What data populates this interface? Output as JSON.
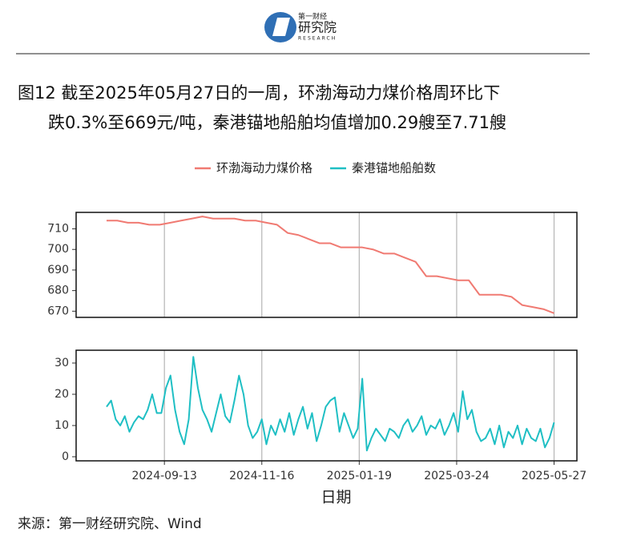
{
  "logo": {
    "name": "第一财经",
    "text": "研究院",
    "sub": "RESEARCH"
  },
  "title": [
    "图12  截至2025年05月27日的一周，环渤海动力煤价格周环比下",
    "跌0.3%至669元/吨，秦港锚地船舶均值增加0.29艘至7.71艘"
  ],
  "source": "来源：第一财经研究院、Wind",
  "chart_data": [
    {
      "type": "line",
      "x": [
        "2024-08-06",
        "2024-08-13",
        "2024-08-20",
        "2024-08-27",
        "2024-09-03",
        "2024-09-10",
        "2024-09-17",
        "2024-09-24",
        "2024-10-01",
        "2024-10-08",
        "2024-10-15",
        "2024-10-22",
        "2024-10-29",
        "2024-11-05",
        "2024-11-12",
        "2024-11-19",
        "2024-11-26",
        "2024-12-03",
        "2024-12-10",
        "2024-12-17",
        "2024-12-24",
        "2024-12-31",
        "2025-01-07",
        "2025-01-14",
        "2025-01-21",
        "2025-01-28",
        "2025-02-04",
        "2025-02-11",
        "2025-02-18",
        "2025-02-25",
        "2025-03-04",
        "2025-03-11",
        "2025-03-18",
        "2025-03-25",
        "2025-04-01",
        "2025-04-08",
        "2025-04-15",
        "2025-04-22",
        "2025-04-29",
        "2025-05-06",
        "2025-05-13",
        "2025-05-20",
        "2025-05-27"
      ],
      "series": [
        {
          "name": "环渤海动力煤价格",
          "color": "#f07a72",
          "values": [
            714,
            714,
            713,
            713,
            712,
            712,
            713,
            714,
            715,
            716,
            715,
            715,
            715,
            714,
            714,
            713,
            712,
            708,
            707,
            705,
            703,
            703,
            701,
            701,
            701,
            700,
            698,
            698,
            696,
            694,
            687,
            687,
            686,
            685,
            685,
            678,
            678,
            678,
            677,
            673,
            672,
            671,
            669
          ]
        }
      ],
      "xlim": [
        "2024-07-17",
        "2025-06-11"
      ],
      "ylim": [
        667,
        718
      ],
      "yticks": [
        670,
        680,
        690,
        700,
        710
      ]
    },
    {
      "type": "line",
      "x": [
        "2024-08-06",
        "2024-08-09",
        "2024-08-12",
        "2024-08-15",
        "2024-08-18",
        "2024-08-21",
        "2024-08-24",
        "2024-08-27",
        "2024-08-30",
        "2024-09-02",
        "2024-09-05",
        "2024-09-08",
        "2024-09-11",
        "2024-09-14",
        "2024-09-17",
        "2024-09-20",
        "2024-09-23",
        "2024-09-26",
        "2024-09-29",
        "2024-10-02",
        "2024-10-05",
        "2024-10-08",
        "2024-10-11",
        "2024-10-14",
        "2024-10-17",
        "2024-10-20",
        "2024-10-23",
        "2024-10-26",
        "2024-10-29",
        "2024-11-01",
        "2024-11-04",
        "2024-11-07",
        "2024-11-10",
        "2024-11-13",
        "2024-11-16",
        "2024-11-19",
        "2024-11-22",
        "2024-11-25",
        "2024-11-28",
        "2024-12-01",
        "2024-12-04",
        "2024-12-07",
        "2024-12-10",
        "2024-12-13",
        "2024-12-16",
        "2024-12-19",
        "2024-12-22",
        "2024-12-25",
        "2024-12-28",
        "2024-12-31",
        "2025-01-03",
        "2025-01-06",
        "2025-01-09",
        "2025-01-12",
        "2025-01-15",
        "2025-01-18",
        "2025-01-21",
        "2025-01-24",
        "2025-01-27",
        "2025-01-30",
        "2025-02-02",
        "2025-02-05",
        "2025-02-08",
        "2025-02-11",
        "2025-02-14",
        "2025-02-17",
        "2025-02-20",
        "2025-02-23",
        "2025-02-26",
        "2025-03-01",
        "2025-03-04",
        "2025-03-07",
        "2025-03-10",
        "2025-03-13",
        "2025-03-16",
        "2025-03-19",
        "2025-03-22",
        "2025-03-25",
        "2025-03-28",
        "2025-03-31",
        "2025-04-03",
        "2025-04-06",
        "2025-04-09",
        "2025-04-12",
        "2025-04-15",
        "2025-04-18",
        "2025-04-21",
        "2025-04-24",
        "2025-04-27",
        "2025-04-30",
        "2025-05-03",
        "2025-05-06",
        "2025-05-09",
        "2025-05-12",
        "2025-05-15",
        "2025-05-18",
        "2025-05-21",
        "2025-05-24",
        "2025-05-27"
      ],
      "series": [
        {
          "name": "秦港锚地船舶数",
          "color": "#1fbfc4",
          "values": [
            16,
            18,
            12,
            10,
            13,
            8,
            11,
            13,
            12,
            15,
            20,
            14,
            14,
            22,
            26,
            15,
            8,
            4,
            12,
            32,
            22,
            15,
            12,
            8,
            14,
            20,
            13,
            11,
            18,
            26,
            20,
            10,
            6,
            8,
            12,
            4,
            10,
            7,
            12,
            8,
            14,
            7,
            12,
            16,
            9,
            14,
            5,
            10,
            16,
            18,
            19,
            8,
            14,
            10,
            6,
            9,
            25,
            2,
            6,
            9,
            7,
            5,
            9,
            8,
            6,
            10,
            12,
            8,
            10,
            13,
            7,
            10,
            9,
            12,
            7,
            10,
            14,
            8,
            21,
            12,
            15,
            8,
            5,
            6,
            9,
            4,
            10,
            3,
            8,
            6,
            10,
            4,
            9,
            6,
            5,
            9,
            3,
            6,
            11
          ]
        }
      ],
      "xlim": [
        "2024-07-17",
        "2025-06-11"
      ],
      "ylim": [
        -1.3,
        34.1
      ],
      "yticks": [
        0,
        10,
        20,
        30
      ],
      "xticks": [
        "2024-09-13",
        "2024-11-16",
        "2025-01-19",
        "2025-03-24",
        "2025-05-27"
      ],
      "xlabel": "日期"
    }
  ]
}
